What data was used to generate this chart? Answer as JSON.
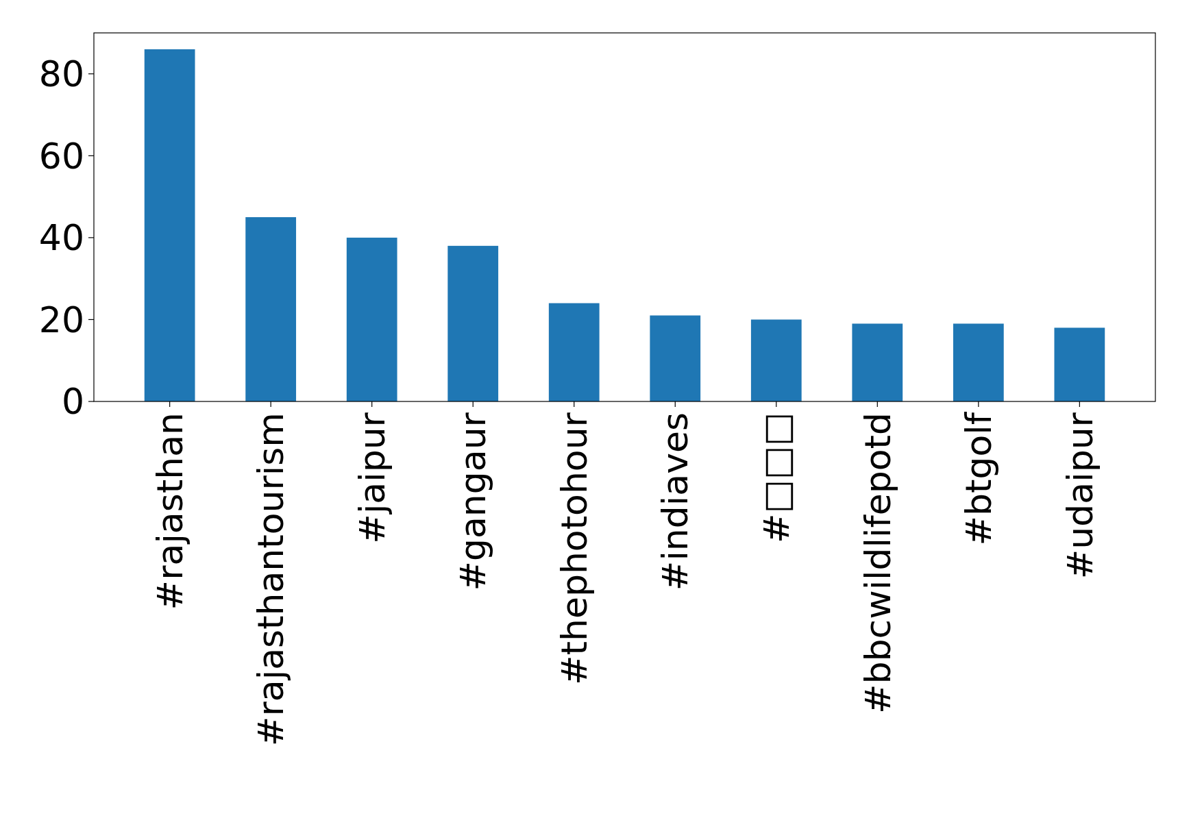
{
  "chart_data": {
    "type": "bar",
    "categories": [
      "#rajasthan",
      "#rajasthantourism",
      "#jaipur",
      "#gangaur",
      "#thephotohour",
      "#indiaves",
      "#□□□",
      "#bbcwildlifepotd",
      "#btgolf",
      "#udaipur"
    ],
    "values": [
      86,
      45,
      40,
      38,
      24,
      21,
      20,
      19,
      19,
      18
    ],
    "color": "#1f77b4",
    "ylim": [
      0,
      90
    ],
    "yticks": [
      0,
      20,
      40,
      60,
      80
    ],
    "grid": false
  }
}
